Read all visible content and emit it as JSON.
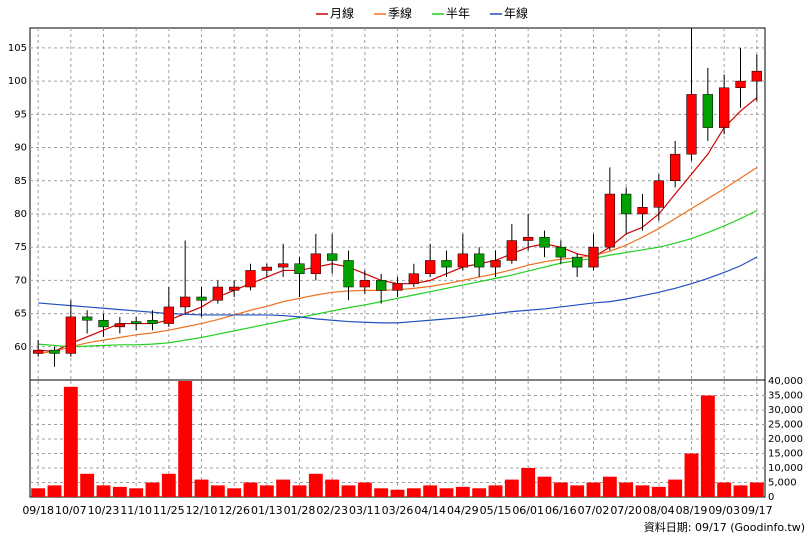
{
  "chart_data": [
    {
      "type": "candlestick",
      "categories": [
        "09/18",
        null,
        "10/07",
        null,
        "10/23",
        null,
        "11/10",
        null,
        "11/25",
        null,
        "12/10",
        null,
        "12/26",
        null,
        "01/13",
        null,
        "01/28",
        null,
        "02/23",
        null,
        "03/11",
        null,
        "03/26",
        null,
        "04/14",
        null,
        "04/29",
        null,
        "05/15",
        null,
        "06/01",
        null,
        "06/16",
        null,
        "07/02",
        null,
        "07/20",
        null,
        "08/04",
        null,
        "08/19",
        null,
        "09/03",
        null,
        "09/17"
      ],
      "open": [
        59,
        59.5,
        59,
        64.5,
        64,
        63,
        63.8,
        64,
        63.5,
        66,
        67.5,
        67,
        68.5,
        69,
        71.5,
        72,
        72.5,
        71,
        74,
        73,
        69,
        70,
        68.5,
        69.5,
        71,
        73,
        72,
        74,
        72,
        73,
        76,
        76.5,
        75,
        73.5,
        72,
        75,
        83,
        80,
        81,
        85,
        89,
        98,
        93,
        99,
        100
      ],
      "high": [
        61,
        60,
        67,
        65.5,
        65,
        64.5,
        64.5,
        65.5,
        69,
        76,
        69,
        70,
        70,
        72.5,
        72.5,
        75.5,
        73.5,
        77,
        77,
        74.5,
        71.5,
        71,
        70.5,
        72.5,
        75.5,
        74.5,
        77,
        75,
        74.5,
        78.5,
        80,
        77.5,
        76,
        74,
        77,
        87,
        84,
        83,
        86,
        91,
        108,
        102,
        101,
        105,
        104
      ],
      "low": [
        58.5,
        57,
        58.5,
        62,
        61.5,
        62,
        62.5,
        62.5,
        63,
        65,
        64.5,
        66.5,
        67.5,
        68.5,
        70.5,
        70.5,
        67.5,
        70,
        71,
        67,
        68,
        66.5,
        67.5,
        69,
        70.5,
        70.5,
        71.5,
        70.5,
        70.5,
        72.5,
        74.5,
        73.5,
        72.5,
        70.5,
        71.5,
        74.5,
        77,
        77.5,
        79,
        84,
        88,
        91,
        92,
        96,
        97
      ],
      "close": [
        59.5,
        59,
        64.5,
        64,
        63,
        63.5,
        63.5,
        63.5,
        66,
        67.5,
        67,
        69,
        69,
        71.5,
        72,
        72.5,
        71,
        74,
        73,
        69,
        70,
        68.5,
        69.5,
        71,
        73,
        72,
        74,
        72,
        73,
        76,
        76.5,
        75,
        73.5,
        72,
        75,
        83,
        80,
        81,
        85,
        89,
        98,
        93,
        99,
        100,
        101.5
      ],
      "up_color": "#ff0000",
      "down_color": "#00a000",
      "series": [
        {
          "name": "月線",
          "color": "#d00000",
          "values": [
            59.5,
            59.3,
            60.5,
            61.5,
            62.5,
            63.5,
            63.5,
            63.5,
            64,
            65,
            66,
            67.5,
            68.5,
            69.5,
            70.5,
            71.5,
            71.5,
            72,
            72.5,
            72,
            71,
            70,
            69.5,
            69.5,
            70,
            71,
            72,
            72.5,
            73,
            74,
            75,
            75.5,
            75,
            74,
            73.5,
            75,
            77,
            78,
            80,
            83,
            86,
            89,
            93,
            95.5,
            97.5
          ]
        },
        {
          "name": "季線",
          "color": "#f07020",
          "values": [
            59,
            59.3,
            60,
            60.6,
            61,
            61.4,
            61.8,
            62.1,
            62.5,
            63,
            63.5,
            64.1,
            64.8,
            65.5,
            66.1,
            66.8,
            67.3,
            67.8,
            68.2,
            68.4,
            68.5,
            68.5,
            68.6,
            68.8,
            69.1,
            69.5,
            70,
            70.5,
            71,
            71.6,
            72.3,
            72.8,
            73.2,
            73.4,
            73.7,
            74.4,
            75.3,
            76.5,
            77.8,
            79.3,
            80.8,
            82.3,
            83.8,
            85.4,
            87
          ]
        },
        {
          "name": "半年",
          "color": "#20d020",
          "values": [
            60.4,
            60.2,
            60,
            60.1,
            60.2,
            60.3,
            60.3,
            60.4,
            60.6,
            61,
            61.4,
            61.9,
            62.4,
            62.9,
            63.4,
            63.9,
            64.4,
            64.9,
            65.4,
            65.9,
            66.3,
            66.8,
            67.3,
            67.8,
            68.3,
            68.8,
            69.3,
            69.8,
            70.3,
            70.8,
            71.4,
            72,
            72.6,
            73,
            73.3,
            73.8,
            74.2,
            74.6,
            75,
            75.6,
            76.3,
            77.2,
            78.2,
            79.3,
            80.5
          ]
        },
        {
          "name": "年線",
          "color": "#2050c0",
          "values": [
            66.6,
            66.4,
            66.2,
            66,
            65.8,
            65.6,
            65.4,
            65.2,
            65,
            64.9,
            64.8,
            64.8,
            64.8,
            64.8,
            64.8,
            64.7,
            64.5,
            64.2,
            64,
            63.8,
            63.7,
            63.6,
            63.6,
            63.8,
            64,
            64.2,
            64.4,
            64.7,
            65,
            65.3,
            65.5,
            65.7,
            66,
            66.3,
            66.6,
            66.8,
            67.2,
            67.7,
            68.2,
            68.8,
            69.5,
            70.3,
            71.2,
            72.2,
            73.5
          ]
        }
      ],
      "ylim": [
        55,
        108
      ],
      "yticks": [
        60,
        65,
        70,
        75,
        80,
        85,
        90,
        95,
        100,
        105
      ],
      "grid": true
    },
    {
      "type": "bar",
      "values": [
        3000,
        4000,
        38000,
        8000,
        4000,
        3500,
        3000,
        5000,
        8000,
        40000,
        6000,
        4000,
        3000,
        5000,
        4000,
        6000,
        4000,
        8000,
        6000,
        4000,
        5000,
        3000,
        2500,
        3000,
        4000,
        3000,
        3500,
        3000,
        4000,
        6000,
        10000,
        7000,
        5000,
        4000,
        5000,
        7000,
        5000,
        4000,
        3500,
        6000,
        15000,
        35000,
        5000,
        4000,
        5000
      ],
      "color": "#ff0000",
      "ylim": [
        0,
        40000
      ],
      "yticks": [
        0,
        {
          "value": 5000,
          "label": "5,000"
        },
        {
          "value": 10000,
          "label": "10,000"
        },
        {
          "value": 15000,
          "label": "15,000"
        },
        {
          "value": 20000,
          "label": "20,000"
        },
        {
          "value": 25000,
          "label": "25,000"
        },
        {
          "value": 30000,
          "label": "30,000"
        },
        {
          "value": 35000,
          "label": "35,000"
        },
        {
          "value": 40000,
          "label": "40,000"
        }
      ],
      "grid": true,
      "source": "資料日期: 09/17 (Goodinfo.tw)"
    }
  ]
}
